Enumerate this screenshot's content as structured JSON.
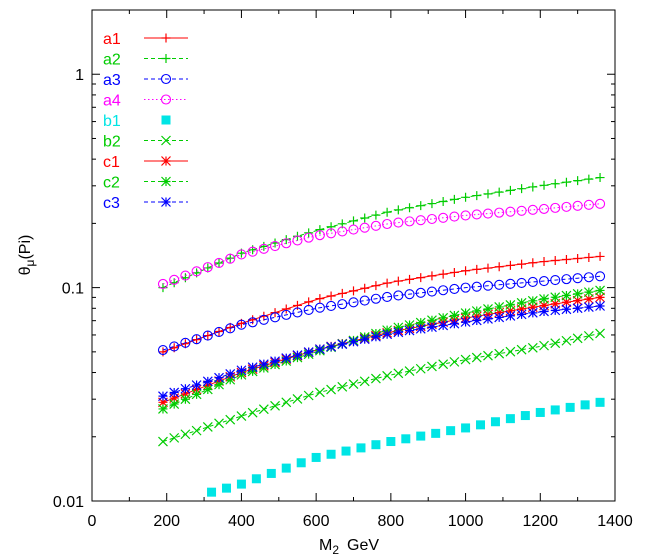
{
  "chart_data": {
    "type": "line",
    "title": "",
    "xlabel": "M",
    "xlabel_sub": "2",
    "xlabel_unit": "GeV",
    "ylabel": "θ",
    "ylabel_sub": "μ",
    "ylabel_suffix": "(Pi)",
    "xlim": [
      0,
      1400
    ],
    "ylim": [
      0.01,
      2.0
    ],
    "y_scale": "log",
    "grid": false,
    "legend_position": "top-left",
    "x_ticks": [
      0,
      200,
      400,
      600,
      800,
      1000,
      1200,
      1400
    ],
    "x_tick_labels": [
      "0",
      "200",
      "400",
      "600",
      "800",
      "1000",
      "1200",
      "1400"
    ],
    "y_ticks": [
      0.01,
      0.1,
      1
    ],
    "y_tick_labels": [
      "0.01",
      "0.1",
      "1"
    ],
    "series": [
      {
        "name": "a1",
        "color": "#ff0000",
        "marker": "plus",
        "line": "solid",
        "x": [
          190,
          1360
        ],
        "points": [
          [
            190,
            0.05
          ],
          [
            400,
            0.068
          ],
          [
            600,
            0.088
          ],
          [
            800,
            0.106
          ],
          [
            1000,
            0.12
          ],
          [
            1200,
            0.132
          ],
          [
            1360,
            0.14
          ]
        ]
      },
      {
        "name": "a2",
        "color": "#00cc00",
        "marker": "plus",
        "line": "dashed",
        "points": [
          [
            190,
            0.1
          ],
          [
            400,
            0.145
          ],
          [
            600,
            0.185
          ],
          [
            800,
            0.228
          ],
          [
            1000,
            0.265
          ],
          [
            1200,
            0.3
          ],
          [
            1360,
            0.328
          ]
        ]
      },
      {
        "name": "a3",
        "color": "#0000ff",
        "marker": "circle",
        "line": "dashed",
        "points": [
          [
            190,
            0.051
          ],
          [
            400,
            0.067
          ],
          [
            600,
            0.08
          ],
          [
            800,
            0.091
          ],
          [
            1000,
            0.1
          ],
          [
            1200,
            0.107
          ],
          [
            1360,
            0.113
          ]
        ]
      },
      {
        "name": "a4",
        "color": "#ff00ff",
        "marker": "circle",
        "line": "dotted",
        "points": [
          [
            190,
            0.104
          ],
          [
            400,
            0.143
          ],
          [
            600,
            0.175
          ],
          [
            800,
            0.2
          ],
          [
            1000,
            0.218
          ],
          [
            1200,
            0.233
          ],
          [
            1360,
            0.247
          ]
        ]
      },
      {
        "name": "b1",
        "color": "#00e5e5",
        "marker": "square",
        "line": "none",
        "points": [
          [
            320,
            0.011
          ],
          [
            400,
            0.012
          ],
          [
            600,
            0.016
          ],
          [
            800,
            0.019
          ],
          [
            1000,
            0.022
          ],
          [
            1200,
            0.026
          ],
          [
            1360,
            0.029
          ]
        ]
      },
      {
        "name": "b2",
        "color": "#00cc00",
        "marker": "x",
        "line": "dashed",
        "points": [
          [
            190,
            0.019
          ],
          [
            400,
            0.025
          ],
          [
            600,
            0.032
          ],
          [
            800,
            0.039
          ],
          [
            1000,
            0.046
          ],
          [
            1200,
            0.053
          ],
          [
            1360,
            0.061
          ]
        ]
      },
      {
        "name": "c1",
        "color": "#ff0000",
        "marker": "star",
        "line": "solid",
        "points": [
          [
            190,
            0.029
          ],
          [
            400,
            0.04
          ],
          [
            600,
            0.051
          ],
          [
            800,
            0.062
          ],
          [
            1000,
            0.072
          ],
          [
            1200,
            0.082
          ],
          [
            1360,
            0.09
          ]
        ]
      },
      {
        "name": "c2",
        "color": "#00cc00",
        "marker": "star",
        "line": "dashed",
        "points": [
          [
            190,
            0.027
          ],
          [
            400,
            0.039
          ],
          [
            600,
            0.05
          ],
          [
            800,
            0.064
          ],
          [
            1000,
            0.076
          ],
          [
            1200,
            0.088
          ],
          [
            1360,
            0.097
          ]
        ]
      },
      {
        "name": "c3",
        "color": "#0000ff",
        "marker": "star",
        "line": "dashed",
        "points": [
          [
            190,
            0.031
          ],
          [
            400,
            0.041
          ],
          [
            600,
            0.051
          ],
          [
            800,
            0.061
          ],
          [
            1000,
            0.069
          ],
          [
            1200,
            0.077
          ],
          [
            1360,
            0.082
          ]
        ]
      }
    ]
  }
}
